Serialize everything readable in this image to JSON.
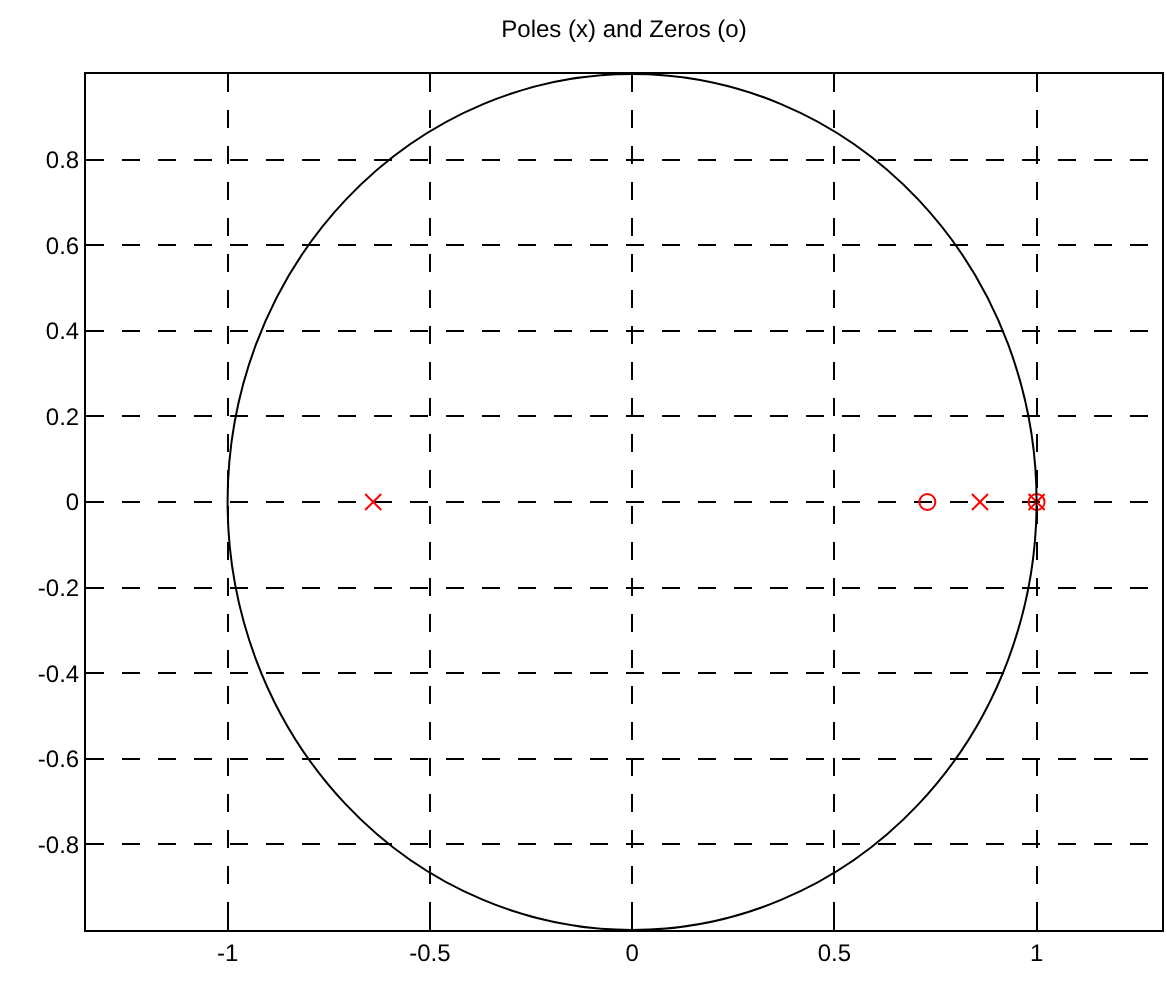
{
  "chart_data": {
    "type": "scatter",
    "title": "Poles (x) and Zeros (o)",
    "xlim": [
      -1.35,
      1.31
    ],
    "ylim": [
      -1,
      1
    ],
    "xticks": [
      -1,
      -0.5,
      0,
      0.5,
      1
    ],
    "yticks": [
      -0.8,
      -0.6,
      -0.4,
      -0.2,
      0,
      0.2,
      0.4,
      0.6,
      0.8
    ],
    "grid": true,
    "series": [
      {
        "marker": "cross",
        "color": "#ff0000",
        "x": [
          -0.64,
          0.86,
          1.0
        ],
        "values": [
          0,
          0,
          0
        ]
      },
      {
        "marker": "circle",
        "color": "#ff0000",
        "x": [
          0.73,
          1.0
        ],
        "values": [
          0,
          0
        ]
      }
    ]
  }
}
